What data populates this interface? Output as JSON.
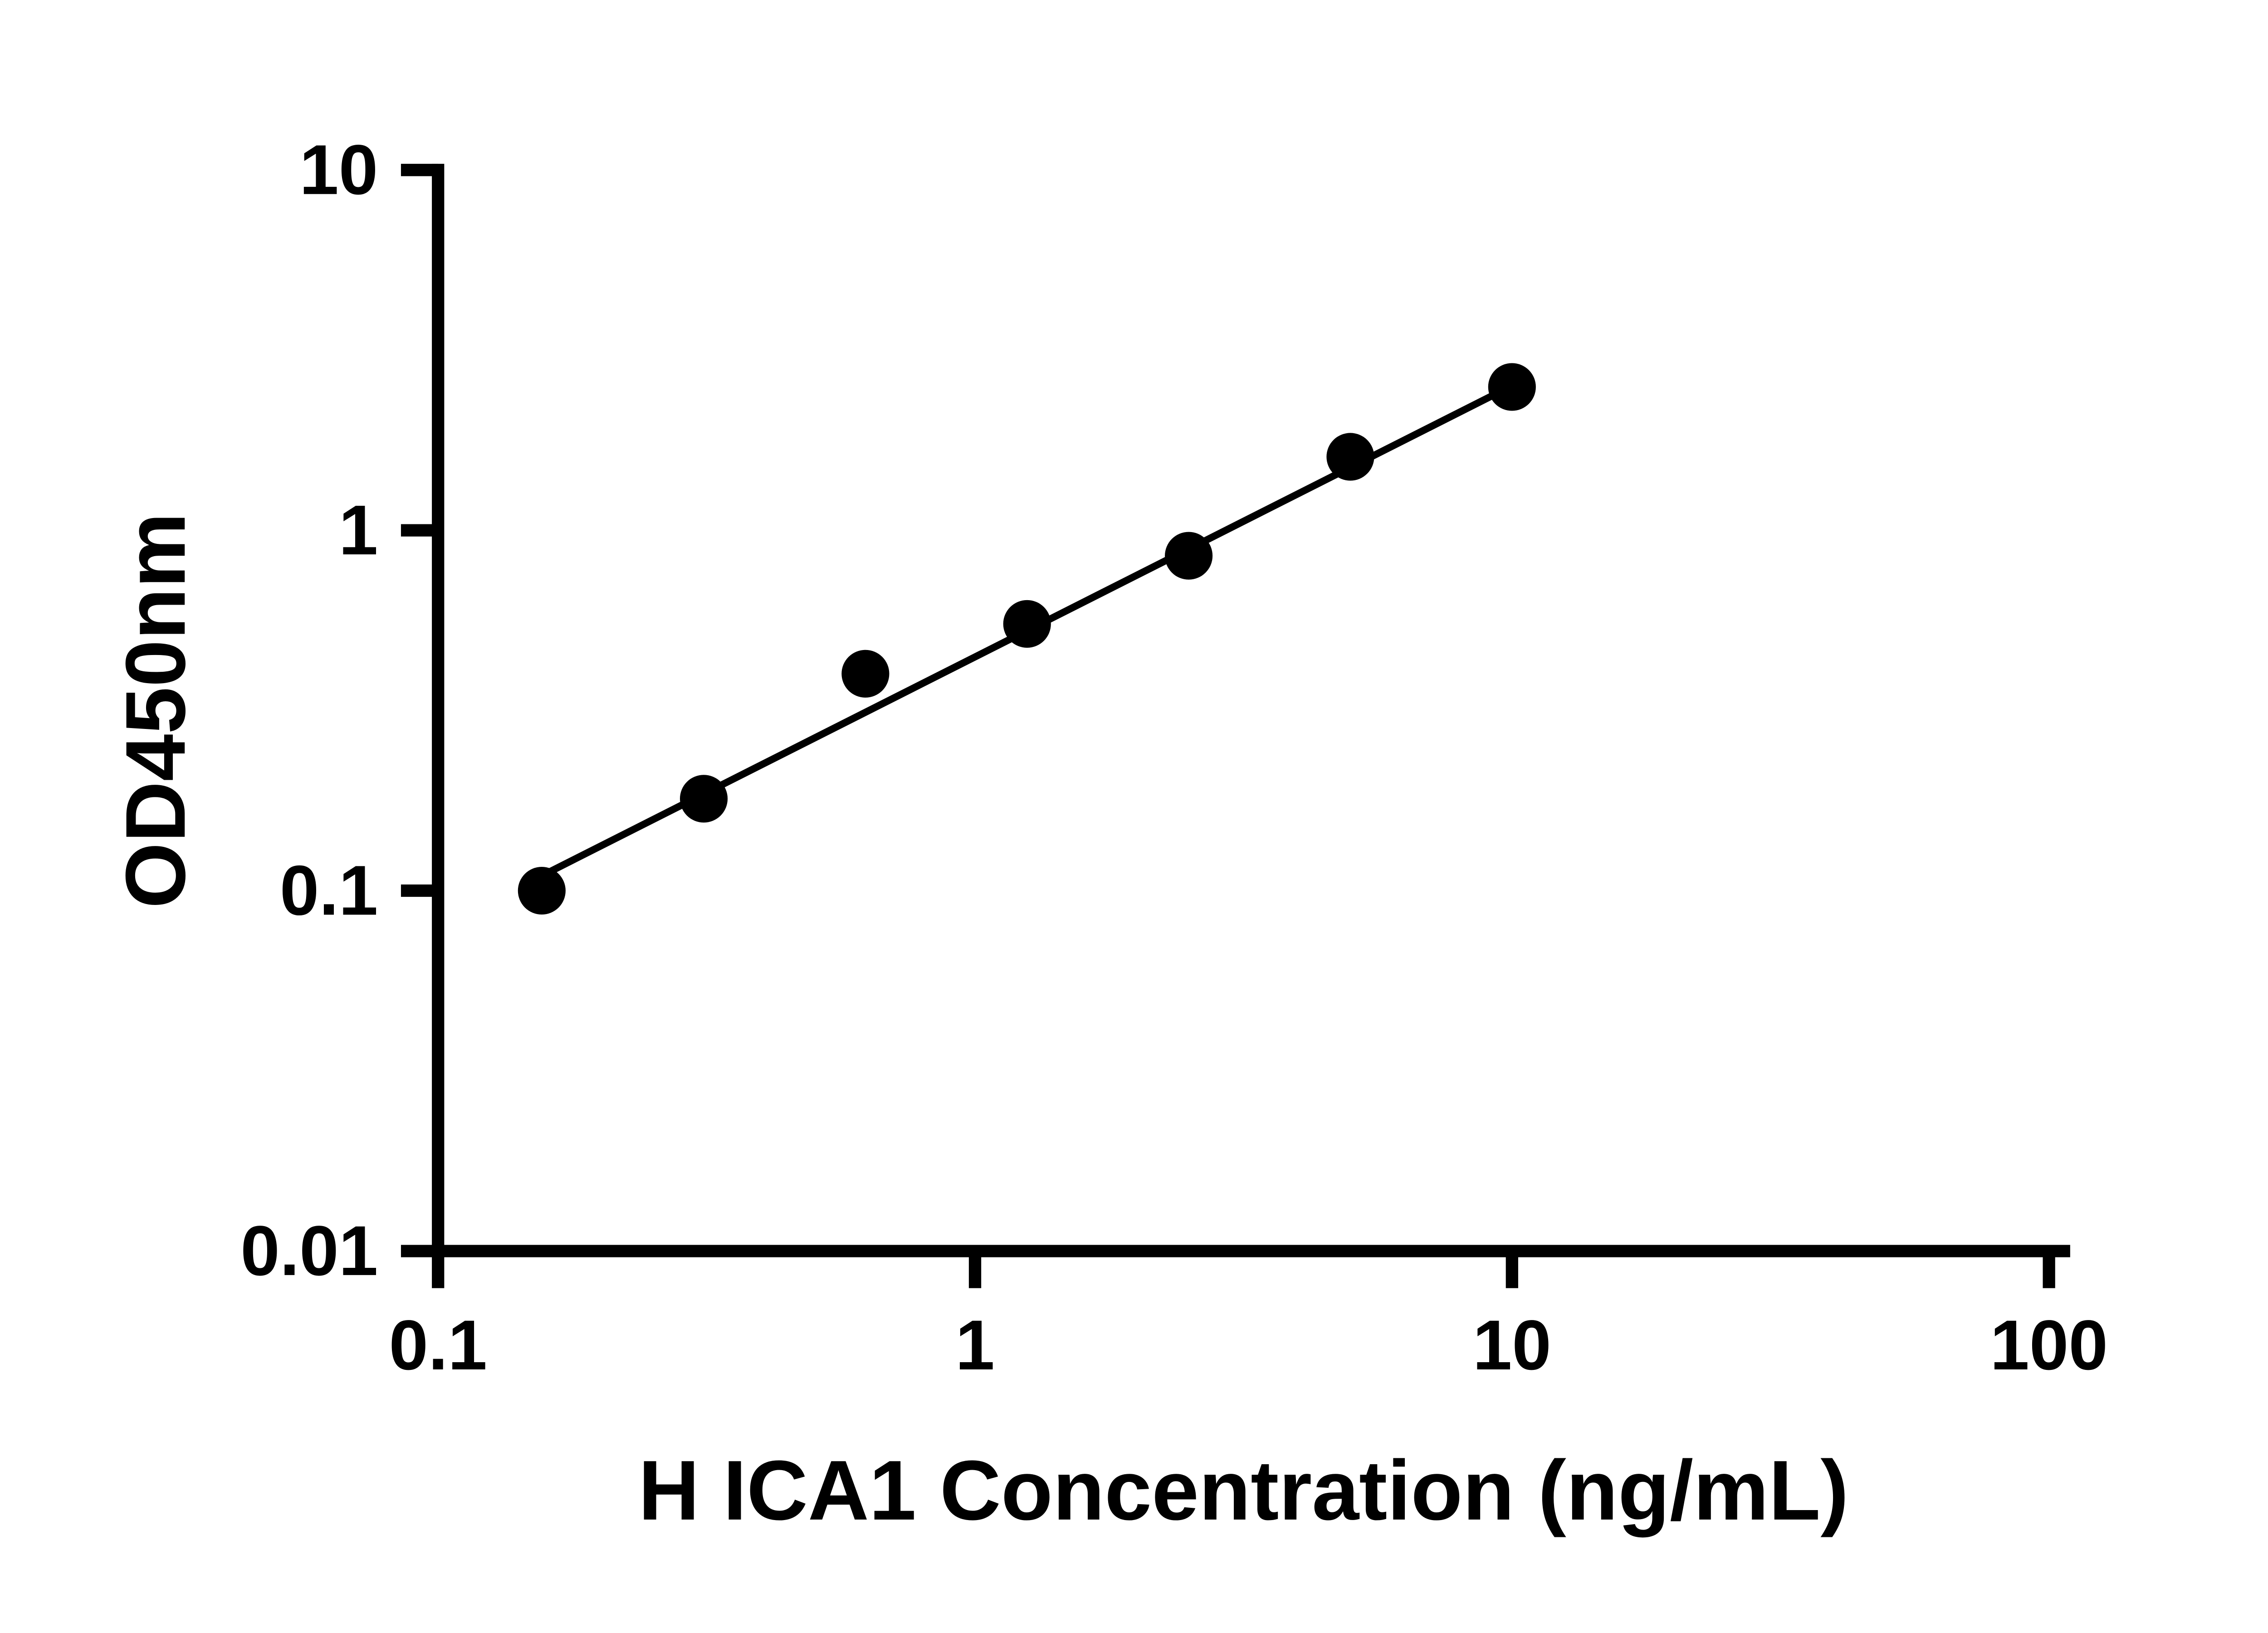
{
  "chart_data": {
    "type": "scatter",
    "title": "",
    "xlabel": "H ICA1 Concentration (ng/mL)",
    "ylabel": "OD450nm",
    "x_scale": "log",
    "y_scale": "log",
    "xlim": [
      0.1,
      100
    ],
    "ylim": [
      0.01,
      10
    ],
    "x_ticks": [
      0.1,
      1,
      10,
      100
    ],
    "x_tick_labels": [
      "0.1",
      "1",
      "10",
      "100"
    ],
    "y_ticks": [
      0.01,
      0.1,
      1,
      10
    ],
    "y_tick_labels": [
      "0.01",
      "0.1",
      "1",
      "10"
    ],
    "grid": false,
    "legend": "none",
    "axis_color": "#000000",
    "background_color": "#ffffff",
    "series": [
      {
        "name": "standard-curve-points",
        "marker": "circle",
        "color": "#000000",
        "x": [
          0.156,
          0.3125,
          0.625,
          1.25,
          2.5,
          5,
          10
        ],
        "y": [
          0.1,
          0.18,
          0.4,
          0.55,
          0.85,
          1.6,
          2.5
        ]
      }
    ],
    "fit_line": {
      "x_start": 0.156,
      "y_start": 0.11,
      "x_end": 10,
      "y_end": 2.52,
      "color": "#000000"
    }
  }
}
